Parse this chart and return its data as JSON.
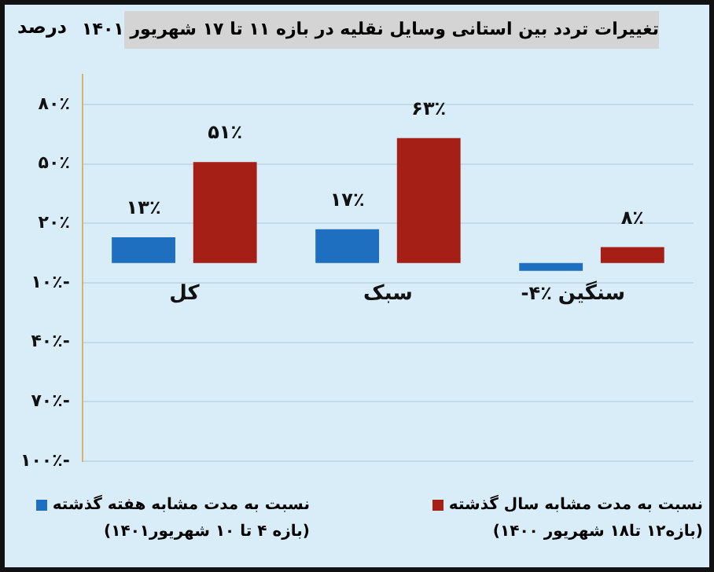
{
  "chart_data": {
    "type": "bar",
    "title": "تغییرات تردد بین استانی وسایل نقلیه در بازه ۱۱ تا ۱۷ شهریور ۱۴۰۱",
    "ylabel": "درصد",
    "categories": [
      "کل",
      "سبک",
      "سنگین"
    ],
    "series": [
      {
        "name": "نسبت به مدت مشابه هفته گذشته (بازه ۴ تا ۱۰ شهریور۱۴۰۱)",
        "color": "#1f6fc0",
        "values": [
          13,
          17,
          -4
        ],
        "value_labels": [
          "۱۳٪",
          "۱۷٪",
          "-۴٪"
        ]
      },
      {
        "name": "نسبت به مدت مشابه سال گذشته (بازه۱۲ تا۱۸ شهریور ۱۴۰۰)",
        "color": "#a51f17",
        "values": [
          51,
          63,
          8
        ],
        "value_labels": [
          "۵۱٪",
          "۶۳٪",
          "۸٪"
        ]
      }
    ],
    "ylim": [
      -100,
      95
    ],
    "yticks": [
      {
        "value": 80,
        "label": "۸۰٪"
      },
      {
        "value": 50,
        "label": "۵۰٪"
      },
      {
        "value": 20,
        "label": "۲۰٪"
      },
      {
        "value": -10,
        "label": "۱۰٪-"
      },
      {
        "value": -40,
        "label": "۴۰٪-"
      },
      {
        "value": -70,
        "label": "۷۰٪-"
      },
      {
        "value": -100,
        "label": "۱۰۰٪-"
      }
    ],
    "grid": "y",
    "legend": "bottom"
  }
}
